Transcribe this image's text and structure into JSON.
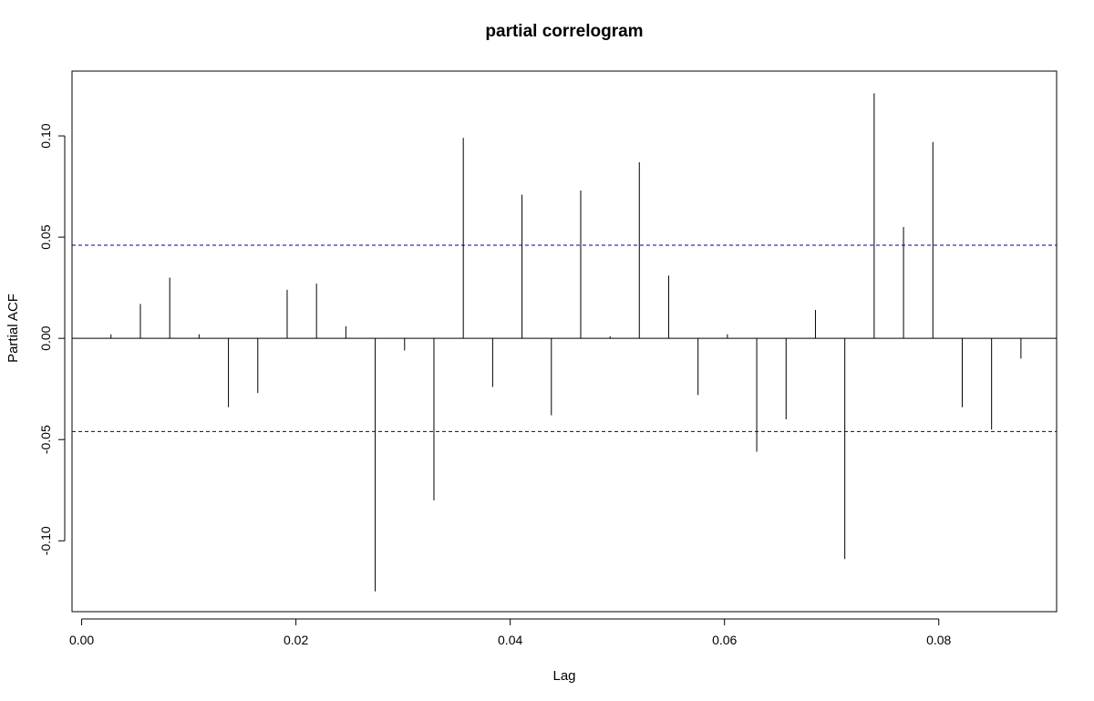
{
  "chart_data": {
    "type": "bar",
    "title": "partial correlogram",
    "xlabel": "Lag",
    "ylabel": "Partial ACF",
    "xlim": [
      -0.0009,
      0.091
    ],
    "ylim": [
      -0.135,
      0.132
    ],
    "x_ticks": [
      {
        "value": 0.0,
        "label": "0.00"
      },
      {
        "value": 0.02,
        "label": "0.02"
      },
      {
        "value": 0.04,
        "label": "0.04"
      },
      {
        "value": 0.06,
        "label": "0.06"
      },
      {
        "value": 0.08,
        "label": "0.08"
      }
    ],
    "y_ticks": [
      {
        "value": -0.1,
        "label": "-0.10"
      },
      {
        "value": -0.05,
        "label": "-0.05"
      },
      {
        "value": 0.0,
        "label": "0.00"
      },
      {
        "value": 0.05,
        "label": "0.05"
      },
      {
        "value": 0.1,
        "label": "0.10"
      }
    ],
    "confidence_bounds": [
      0.046,
      -0.046
    ],
    "zero_line": 0,
    "grid": false,
    "series": [
      {
        "x": [
          0.00274,
          0.00548,
          0.00822,
          0.01096,
          0.0137,
          0.01644,
          0.01918,
          0.02192,
          0.02466,
          0.0274,
          0.03014,
          0.03288,
          0.03562,
          0.03836,
          0.0411,
          0.04384,
          0.04658,
          0.04932,
          0.05205,
          0.05479,
          0.05753,
          0.06027,
          0.06301,
          0.06575,
          0.06849,
          0.07123,
          0.07397,
          0.07671,
          0.07945,
          0.08219,
          0.08493,
          0.08767
        ],
        "values": [
          0.002,
          0.017,
          0.03,
          0.002,
          -0.034,
          -0.027,
          0.024,
          0.027,
          0.006,
          -0.125,
          -0.006,
          -0.08,
          0.099,
          -0.024,
          0.071,
          -0.038,
          0.073,
          0.001,
          0.087,
          0.031,
          -0.028,
          0.002,
          -0.056,
          -0.04,
          0.014,
          -0.109,
          0.121,
          0.055,
          0.097,
          -0.034,
          -0.045,
          -0.01
        ]
      }
    ]
  },
  "colors": {
    "spike": "#000000",
    "bound_line": "#00008B",
    "frame": "#000000"
  }
}
